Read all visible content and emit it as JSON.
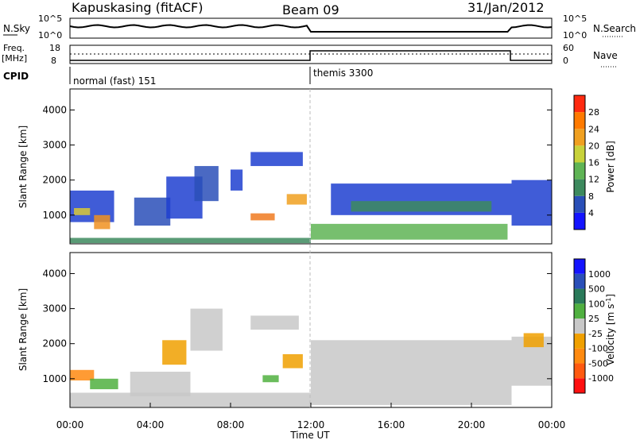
{
  "header": {
    "station": "Kapuskasing (fitACF)",
    "beam": "Beam 09",
    "date": "31/Jan/2012"
  },
  "aux": {
    "nsky_label": "N.Sky",
    "nsearch_label": "N.Search",
    "freq_label": "Freq.",
    "freq_unit": "[MHz]",
    "nave_label": "Nave",
    "cpid_label": "CPID",
    "nsky_ticks": [
      "10^5",
      "10^0"
    ],
    "nsearch_ticks": [
      "10^5",
      "10^0"
    ],
    "freq_ticks": [
      "18",
      "8"
    ],
    "nave_ticks": [
      "60",
      "0"
    ],
    "cpid_modes": [
      {
        "label": "normal (fast) 151",
        "start_hr": 0,
        "end_hr": 12
      },
      {
        "label": "themis 3300",
        "start_hr": 12,
        "end_hr": 24
      }
    ]
  },
  "chart_data": [
    {
      "type": "heatmap",
      "panel": "power",
      "ylabel": "Slant Range [km]",
      "xlabel": "",
      "xlim_hr": [
        0,
        24
      ],
      "ylim": [
        180,
        4600
      ],
      "yticks": [
        1000,
        2000,
        3000,
        4000
      ],
      "colorbar": {
        "label": "Power [dB]",
        "ticks": [
          "4",
          "8",
          "12",
          "16",
          "20",
          "24",
          "28"
        ],
        "colors": [
          "#1414ff",
          "#2a4fb8",
          "#3d8a5e",
          "#5fb455",
          "#c8d23a",
          "#f0a020",
          "#ff7a00",
          "#ff2a10"
        ]
      },
      "bands": [
        {
          "t0": 0.0,
          "t1": 2.2,
          "r0": 800,
          "r1": 1700,
          "color": "#1e3fd0"
        },
        {
          "t0": 0.2,
          "t1": 1.0,
          "r0": 1000,
          "r1": 1200,
          "color": "#d8c838"
        },
        {
          "t0": 1.2,
          "t1": 2.0,
          "r0": 600,
          "r1": 1000,
          "color": "#f09020"
        },
        {
          "t0": 3.2,
          "t1": 5.0,
          "r0": 700,
          "r1": 1500,
          "color": "#2a4fb8"
        },
        {
          "t0": 4.8,
          "t1": 6.6,
          "r0": 900,
          "r1": 2100,
          "color": "#1e3fd0"
        },
        {
          "t0": 6.2,
          "t1": 7.4,
          "r0": 1400,
          "r1": 2400,
          "color": "#2a4fb8"
        },
        {
          "t0": 8.0,
          "t1": 8.6,
          "r0": 1700,
          "r1": 2300,
          "color": "#1e3fd0"
        },
        {
          "t0": 9.0,
          "t1": 11.6,
          "r0": 2400,
          "r1": 2800,
          "color": "#1e3fd0"
        },
        {
          "t0": 9.0,
          "t1": 10.2,
          "r0": 850,
          "r1": 1050,
          "color": "#f07a20"
        },
        {
          "t0": 10.8,
          "t1": 11.8,
          "r0": 1300,
          "r1": 1600,
          "color": "#f0a020"
        },
        {
          "t0": 12.0,
          "t1": 21.8,
          "r0": 300,
          "r1": 750,
          "color": "#5fb455"
        },
        {
          "t0": 13.0,
          "t1": 22.0,
          "r0": 1000,
          "r1": 1900,
          "color": "#1e3fd0"
        },
        {
          "t0": 14.0,
          "t1": 21.0,
          "r0": 1100,
          "r1": 1400,
          "color": "#3d8a5e"
        },
        {
          "t0": 22.0,
          "t1": 24.0,
          "r0": 700,
          "r1": 2000,
          "color": "#1e3fd0"
        },
        {
          "t0": 0.0,
          "t1": 12.0,
          "r0": 200,
          "r1": 350,
          "color": "#3d8a5e"
        }
      ]
    },
    {
      "type": "heatmap",
      "panel": "velocity",
      "ylabel": "Slant Range [km]",
      "xlabel": "Time UT",
      "xlim_hr": [
        0,
        24
      ],
      "ylim": [
        180,
        4600
      ],
      "yticks": [
        1000,
        2000,
        3000,
        4000
      ],
      "xticks": [
        "00:00",
        "04:00",
        "08:00",
        "12:00",
        "16:00",
        "20:00",
        "00:00"
      ],
      "colorbar": {
        "label": "Velocity [m s",
        "label_sup": "-1",
        "label_end": "]",
        "ticks": [
          "-1000",
          "-500",
          "-100",
          "-25",
          "25",
          "100",
          "500",
          "1000"
        ],
        "colors": [
          "#ff1010",
          "#ff5a10",
          "#ff8a10",
          "#f0a000",
          "#c8c8c8",
          "#50b040",
          "#2a7a5a",
          "#2a4fb8",
          "#1414ff"
        ]
      },
      "bands": [
        {
          "t0": 0.0,
          "t1": 1.2,
          "r0": 950,
          "r1": 1250,
          "color": "#ff8a10"
        },
        {
          "t0": 1.0,
          "t1": 2.4,
          "r0": 700,
          "r1": 1000,
          "color": "#50b040"
        },
        {
          "t0": 0.0,
          "t1": 12.0,
          "r0": 200,
          "r1": 600,
          "color": "#c8c8c8"
        },
        {
          "t0": 3.0,
          "t1": 6.0,
          "r0": 500,
          "r1": 1200,
          "color": "#c8c8c8"
        },
        {
          "t0": 4.6,
          "t1": 5.8,
          "r0": 1400,
          "r1": 2100,
          "color": "#f0a000"
        },
        {
          "t0": 6.0,
          "t1": 7.6,
          "r0": 1800,
          "r1": 3000,
          "color": "#c8c8c8"
        },
        {
          "t0": 9.0,
          "t1": 11.4,
          "r0": 2400,
          "r1": 2800,
          "color": "#c8c8c8"
        },
        {
          "t0": 10.6,
          "t1": 11.6,
          "r0": 1300,
          "r1": 1700,
          "color": "#f0a000"
        },
        {
          "t0": 9.6,
          "t1": 10.4,
          "r0": 900,
          "r1": 1100,
          "color": "#50b040"
        },
        {
          "t0": 12.0,
          "t1": 22.0,
          "r0": 250,
          "r1": 2100,
          "color": "#c8c8c8"
        },
        {
          "t0": 22.0,
          "t1": 24.0,
          "r0": 800,
          "r1": 2200,
          "color": "#c8c8c8"
        },
        {
          "t0": 22.6,
          "t1": 23.6,
          "r0": 1900,
          "r1": 2300,
          "color": "#f0a000"
        }
      ]
    }
  ]
}
